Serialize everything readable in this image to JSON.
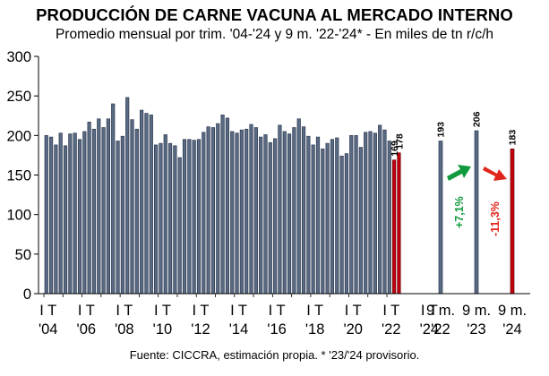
{
  "title": "PRODUCCIÓN DE CARNE VACUNA AL MERCADO INTERNO",
  "subtitle": "Promedio mensual por trim. '04-'24 y 9 m. '22-'24* - En miles de tn r/c/h",
  "source": "Fuente: CICCRA, estimación propia. * '23/'24 provisorio.",
  "chart_data": {
    "type": "bar",
    "ylim": [
      0,
      300
    ],
    "yticks": [
      0,
      50,
      100,
      150,
      200,
      250,
      300
    ],
    "grid": false,
    "quarterly": {
      "start_year": 2004,
      "values": [
        200,
        198,
        188,
        203,
        187,
        202,
        203,
        195,
        205,
        217,
        208,
        221,
        210,
        221,
        240,
        193,
        199,
        248,
        220,
        208,
        232,
        228,
        226,
        188,
        190,
        201,
        190,
        187,
        172,
        195,
        195,
        194,
        195,
        204,
        211,
        210,
        215,
        226,
        222,
        205,
        203,
        207,
        208,
        214,
        210,
        198,
        201,
        191,
        196,
        213,
        205,
        202,
        210,
        221,
        211,
        199,
        188,
        198,
        183,
        190,
        195,
        197,
        174,
        177,
        200,
        200,
        185,
        204,
        205,
        203,
        213,
        207,
        193,
        169,
        178
      ],
      "labels": [
        {
          "values": [
            169
          ],
          "index": 73
        },
        {
          "values": [
            178
          ],
          "index": 74
        }
      ]
    },
    "nine_months": [
      {
        "label_top": "9 m.",
        "label_bottom": "'22",
        "value": 193
      },
      {
        "label_top": "9 m.",
        "label_bottom": "'23",
        "value": 206
      },
      {
        "label_top": "9 m.",
        "label_bottom": "'24",
        "value": 183
      }
    ],
    "x_tick_labels": [
      {
        "top": "I T",
        "bottom": "'04"
      },
      {
        "top": "I T",
        "bottom": "'06"
      },
      {
        "top": "I T",
        "bottom": "'08"
      },
      {
        "top": "I T",
        "bottom": "'10"
      },
      {
        "top": "I T",
        "bottom": "'12"
      },
      {
        "top": "I T",
        "bottom": "'14"
      },
      {
        "top": "I T",
        "bottom": "'16"
      },
      {
        "top": "I T",
        "bottom": "'18"
      },
      {
        "top": "I T",
        "bottom": "'20"
      },
      {
        "top": "I T",
        "bottom": "'22"
      },
      {
        "top": "I T",
        "bottom": "'24"
      }
    ],
    "annotations": [
      {
        "text": "+7,1%",
        "color": "#119a3c",
        "direction": "up"
      },
      {
        "text": "-11,3%",
        "color": "#e0251b",
        "direction": "down"
      }
    ],
    "colors": {
      "bar": "#5a6a82",
      "bar_edge": "#2c3a52",
      "highlight": "#c0000e",
      "highlight_edge": "#6e0008",
      "up": "#119a3c",
      "down": "#e0251b"
    }
  }
}
